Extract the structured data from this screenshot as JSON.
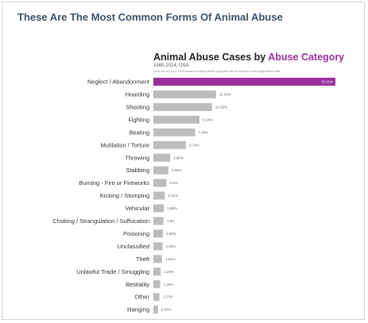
{
  "page_title": "These Are The Most Common Forms Of Animal Abuse",
  "chart_data": {
    "type": "bar",
    "orientation": "horizontal",
    "title": "Animal Abuse Cases by Abuse Category",
    "title_plain": "Animal Abuse Cases by",
    "title_accent": "Abuse Category",
    "subtitle": "1980-2014, USA",
    "note": "Does not add up to 100% because multiple abuse categories can be included in one single abuse case",
    "accent_color": "#9b2f9b",
    "bar_color": "#bdbdbd",
    "categories": [
      "Neglect / Abandonment",
      "Hoarding",
      "Shooting",
      "Fighting",
      "Beating",
      "Mutilation / Torture",
      "Throwing",
      "Stabbing",
      "Burning - Fire or Fireworks",
      "Kicking / Stomping",
      "Vehicular",
      "Choking / Strangulation / Suffocation",
      "Poisoning",
      "Unclassified",
      "Theft",
      "Unlawful Trade / Smuggling",
      "Bestiality",
      "Other",
      "Hanging"
    ],
    "values": [
      32.11,
      11.06,
      10.35,
      8.14,
      7.36,
      5.74,
      2.96,
      2.65,
      2.3,
      2.01,
      1.85,
      1.8,
      1.68,
      1.63,
      1.54,
      1.29,
      1.19,
      1.07,
      0.83
    ],
    "value_labels": [
      "32.11%",
      "11.06%",
      "10.35%",
      "8.14%",
      "7.36%",
      "5.74%",
      "2.96%",
      "2.65%",
      "2.3%",
      "2.01%",
      "1.85%",
      "1.8%",
      "1.68%",
      "1.63%",
      "1.54%",
      "1.29%",
      "1.19%",
      "1.07%",
      "0.83%"
    ],
    "xlim": [
      0,
      32.11
    ],
    "grid": false,
    "legend": "none"
  }
}
